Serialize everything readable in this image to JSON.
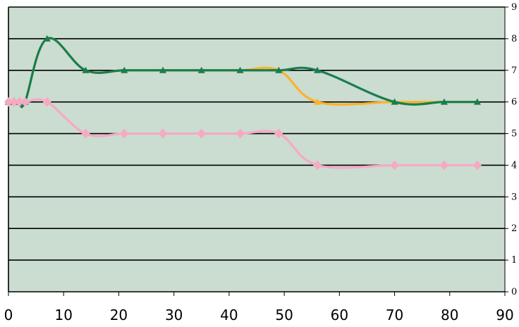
{
  "chart_data": {
    "type": "line",
    "title": "",
    "xlabel": "",
    "ylabel": "",
    "xlim": [
      0,
      90
    ],
    "ylim": [
      0,
      9
    ],
    "xticks": [
      "0",
      "10",
      "20",
      "30",
      "40",
      "50",
      "60",
      "70",
      "80",
      "90"
    ],
    "yticks": [
      "0",
      "1",
      "2",
      "3",
      "4",
      "5",
      "6",
      "7",
      "8",
      "9"
    ],
    "grid": "horizontal",
    "legend": "none",
    "plot_background": "#cbdcd0",
    "series": [
      {
        "color": "#fbb22a",
        "marker": "triangle",
        "x": [
          0,
          1,
          2,
          3,
          7,
          14,
          21,
          28,
          35,
          42,
          49,
          56,
          70,
          79,
          85
        ],
        "y": [
          6,
          6,
          6,
          6,
          8,
          7,
          7,
          7,
          7,
          7,
          7,
          6,
          6,
          6,
          6
        ]
      },
      {
        "color": "#177e4f",
        "marker": "triangle",
        "x": [
          0,
          1,
          2,
          3,
          7,
          14,
          21,
          28,
          35,
          42,
          49,
          56,
          70,
          79,
          85
        ],
        "y": [
          6,
          6,
          6,
          6,
          8,
          7,
          7,
          7,
          7,
          7,
          7,
          7,
          6,
          6,
          6
        ]
      },
      {
        "color": "#f6a9c5",
        "marker": "diamond",
        "x": [
          0,
          1,
          2,
          3,
          7,
          14,
          21,
          28,
          35,
          42,
          49,
          56,
          70,
          79,
          85
        ],
        "y": [
          6,
          6,
          6,
          6,
          6,
          5,
          5,
          5,
          5,
          5,
          5,
          4,
          4,
          4,
          4
        ]
      }
    ]
  }
}
